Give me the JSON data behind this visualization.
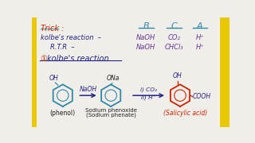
{
  "bg_color": "#F0EEE8",
  "border_color": "#E8C800",
  "title_trick": "Trick :",
  "title_trick_color": "#CC2200",
  "title_underline_color": "#4499AA",
  "col_headers": [
    "B",
    "C",
    "A"
  ],
  "col_header_color": "#3388AA",
  "col_header_underline": "#3388AA",
  "row1_label": "kolbe's reaction  –",
  "row2_label": "R.T.R  –",
  "row_label_color": "#222288",
  "row1_vals": [
    "NaOH",
    "CO₂",
    "H⁺"
  ],
  "row2_vals": [
    "NaOH",
    "CHCl₃",
    "H⁺"
  ],
  "row_val_color": "#663399",
  "section_num_color": "#CC2200",
  "section_text": "kolbe's reaction",
  "section_text_color": "#222288",
  "section_underline_color": "#222288",
  "label_phenol": "(phenol)",
  "label_sodium_line1": "Sodium phenoxide",
  "label_sodium_line2": "(Sodium phenate)",
  "label_salicylic": "(Salicylic acid)",
  "label_phenol_color": "#222222",
  "label_sodium_color": "#222222",
  "label_salicylic_color": "#CC2200",
  "arrow1_label": "NaOH",
  "arrow_color": "#222288",
  "ring_color_teal": "#3388AA",
  "ring_color_red": "#CC2200",
  "sub_color": "#222288",
  "oh_color": "#222288",
  "ona_color": "#222222",
  "cooh_color": "#222288"
}
